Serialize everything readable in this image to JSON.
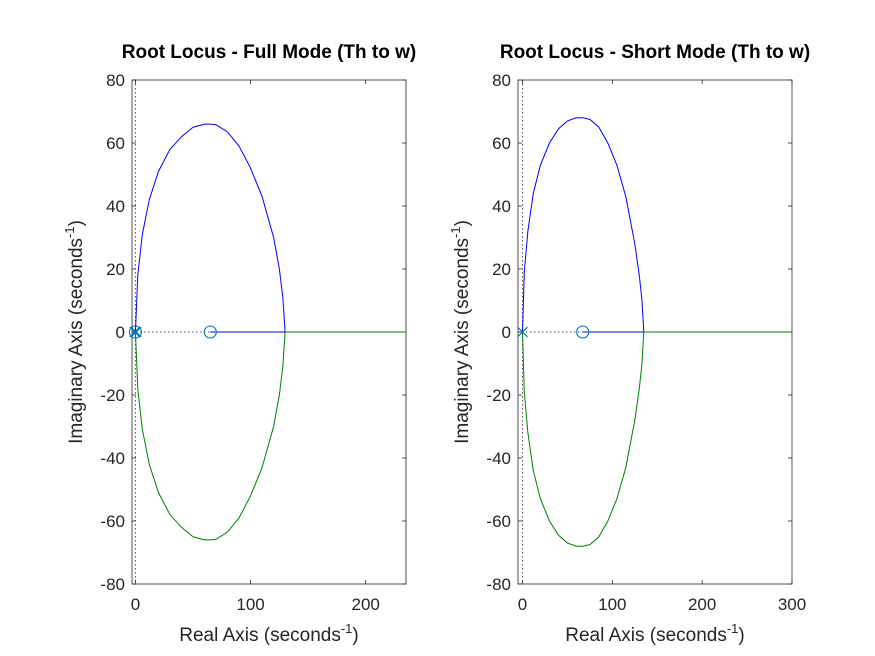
{
  "chart_data": [
    {
      "type": "line",
      "title": "Root Locus - Full Mode (Th to w)",
      "xlabel": "Real Axis (seconds",
      "xlabel_sup": "-1",
      "xlabel_end": ")",
      "ylabel": "Imaginary Axis (seconds",
      "ylabel_sup": "-1",
      "ylabel_end": ")",
      "xlim": [
        -3,
        235
      ],
      "ylim": [
        -80,
        80
      ],
      "xticks": [
        0,
        100,
        200
      ],
      "yticks": [
        -80,
        -60,
        -40,
        -20,
        0,
        20,
        40,
        60,
        80
      ],
      "grid": false,
      "series": [
        {
          "role": "upper-branch",
          "color": "#0000ff",
          "x": [
            0,
            2,
            6,
            12,
            20,
            30,
            40,
            50,
            60,
            65,
            70,
            80,
            90,
            100,
            110,
            120,
            125,
            128,
            130
          ],
          "y": [
            0,
            18,
            31,
            42,
            51,
            58,
            62,
            65,
            66,
            66,
            65.8,
            63.5,
            59,
            52,
            43,
            30,
            20,
            11,
            0
          ]
        },
        {
          "role": "lower-branch",
          "color": "#008000",
          "x": [
            0,
            2,
            6,
            12,
            20,
            30,
            40,
            50,
            60,
            65,
            70,
            80,
            90,
            100,
            110,
            120,
            125,
            128,
            130
          ],
          "y": [
            0,
            -18,
            -31,
            -42,
            -51,
            -58,
            -62,
            -65,
            -66,
            -66,
            -65.8,
            -63.5,
            -59,
            -52,
            -43,
            -30,
            -20,
            -11,
            0
          ]
        },
        {
          "role": "real-axis-to-zero",
          "color": "#0000ff",
          "x": [
            65,
            130
          ],
          "y": [
            0,
            0
          ]
        },
        {
          "role": "real-axis-to-infinity",
          "color": "#008000",
          "x": [
            130,
            235
          ],
          "y": [
            0,
            0
          ]
        }
      ],
      "poles": [
        {
          "x": 0,
          "y": 0
        },
        {
          "x": 0.5,
          "y": 0
        },
        {
          "x": -0.5,
          "y": 0
        }
      ],
      "zeros": [
        {
          "x": 0,
          "y": 0
        },
        {
          "x": 65,
          "y": 0
        }
      ],
      "marker_color": "#0072bd"
    },
    {
      "type": "line",
      "title": "Root Locus - Short Mode (Th to w)",
      "xlabel": "Real Axis (seconds",
      "xlabel_sup": "-1",
      "xlabel_end": ")",
      "ylabel": "Imaginary Axis (seconds",
      "ylabel_sup": "-1",
      "ylabel_end": ")",
      "xlim": [
        -5,
        300
      ],
      "ylim": [
        -80,
        80
      ],
      "xticks": [
        0,
        100,
        200,
        300
      ],
      "yticks": [
        -80,
        -60,
        -40,
        -20,
        0,
        20,
        40,
        60,
        80
      ],
      "grid": false,
      "series": [
        {
          "role": "upper-branch",
          "color": "#0000ff",
          "x": [
            0,
            2,
            6,
            12,
            20,
            30,
            40,
            50,
            60,
            67,
            75,
            85,
            95,
            105,
            115,
            125,
            130,
            133,
            135
          ],
          "y": [
            0,
            19,
            32,
            44,
            53,
            60,
            64.5,
            67,
            68,
            68,
            67.5,
            65,
            60,
            53,
            43,
            28,
            18,
            10,
            0
          ]
        },
        {
          "role": "lower-branch",
          "color": "#008000",
          "x": [
            0,
            2,
            6,
            12,
            20,
            30,
            40,
            50,
            60,
            67,
            75,
            85,
            95,
            105,
            115,
            125,
            130,
            133,
            135
          ],
          "y": [
            0,
            -19,
            -32,
            -44,
            -53,
            -60,
            -64.5,
            -67,
            -68,
            -68,
            -67.5,
            -65,
            -60,
            -53,
            -43,
            -28,
            -18,
            -10,
            0
          ]
        },
        {
          "role": "real-axis-to-zero",
          "color": "#0000ff",
          "x": [
            67,
            135
          ],
          "y": [
            0,
            0
          ]
        },
        {
          "role": "real-axis-to-infinity",
          "color": "#008000",
          "x": [
            135,
            300
          ],
          "y": [
            0,
            0
          ]
        }
      ],
      "poles": [
        {
          "x": 0,
          "y": 0
        }
      ],
      "zeros": [
        {
          "x": 67,
          "y": 0
        }
      ],
      "marker_color": "#0072bd"
    }
  ]
}
